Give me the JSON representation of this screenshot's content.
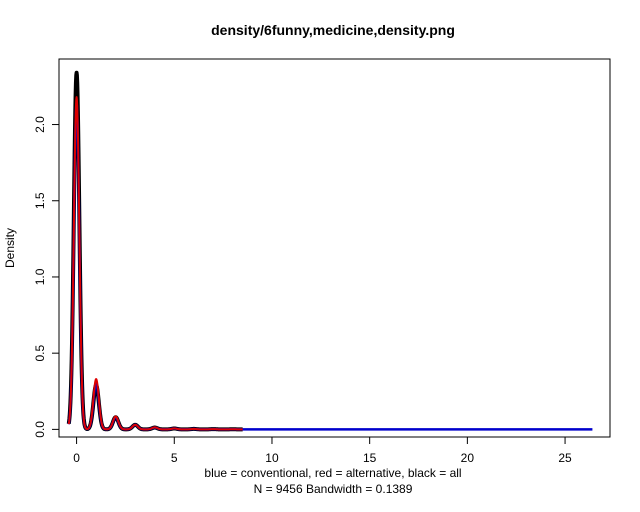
{
  "chart_data": {
    "type": "line",
    "title": "density/6funny,medicine,density.png",
    "xlabel": "blue = conventional, red = alternative, black = all",
    "xlabel2": "N = 9456   Bandwidth = 0.1389",
    "ylabel": "Density",
    "xlim": [
      -0.9,
      27.3
    ],
    "ylim": [
      -0.05,
      2.43
    ],
    "xticks": [
      0,
      5,
      10,
      15,
      20,
      25
    ],
    "yticks": [
      0.0,
      0.5,
      1.0,
      1.5,
      2.0
    ],
    "bandwidth": 0.1389,
    "series": [
      {
        "color": "#000000",
        "x_range": [
          -0.4,
          8.5
        ],
        "peaks": [
          [
            0,
            2.34
          ],
          [
            1,
            0.29
          ],
          [
            2,
            0.08
          ],
          [
            3,
            0.03
          ],
          [
            4,
            0.012
          ],
          [
            5,
            0.006
          ],
          [
            6,
            0.003
          ],
          [
            7,
            0.002
          ],
          [
            8,
            0.001
          ]
        ]
      },
      {
        "color": "#0000cc",
        "x_range": [
          -0.4,
          26.4
        ],
        "peaks": [
          [
            0,
            2.14
          ],
          [
            1,
            0.3
          ],
          [
            2,
            0.08
          ],
          [
            3,
            0.03
          ],
          [
            4,
            0.012
          ],
          [
            5,
            0.006
          ],
          [
            6,
            0.003
          ],
          [
            7,
            0.002
          ],
          [
            8,
            0.001
          ]
        ]
      },
      {
        "color": "#dd0000",
        "x_range": [
          -0.4,
          8.5
        ],
        "peaks": [
          [
            0,
            2.18
          ],
          [
            1,
            0.33
          ],
          [
            2,
            0.085
          ],
          [
            3,
            0.03
          ],
          [
            4,
            0.013
          ],
          [
            5,
            0.006
          ],
          [
            6,
            0.003
          ],
          [
            7,
            0.002
          ],
          [
            8,
            0.001
          ]
        ]
      }
    ]
  }
}
